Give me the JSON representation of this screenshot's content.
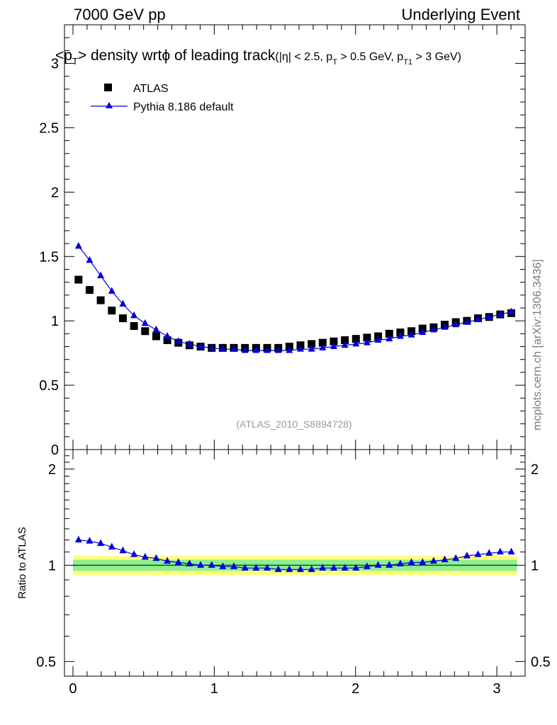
{
  "header": {
    "left": "7000 GeV pp",
    "right": "Underlying Event"
  },
  "title": {
    "main_pre": "<p",
    "main_sub": "T",
    "main_post": "> density wrtϕ of leading track",
    "cut_a": "(|η| < 2.5, p",
    "cut_a_sub": "T",
    "cut_b": " > 0.5 GeV, p",
    "cut_b_sub": "T1",
    "cut_c": " > 3 GeV)"
  },
  "watermark": "mcplots.cern.ch [arXiv:1306.3436]",
  "analysis_label": "(ATLAS_2010_S8894728)",
  "ratio_ylabel": "Ratio to ATLAS",
  "colors": {
    "data": "#000000",
    "mc": "#0000dd",
    "band_outer": "#ffff80",
    "band_inner": "#90ee90",
    "ref_line": "#006400"
  },
  "chart_data": [
    {
      "type": "scatter",
      "panel": "main",
      "xlim": [
        -0.06,
        3.2
      ],
      "ylim": [
        0,
        3.3
      ],
      "ytick_labels": [
        "0",
        "0.5",
        "1",
        "1.5",
        "2",
        "2.5",
        "3"
      ],
      "legend": "top-left",
      "series": [
        {
          "name": "ATLAS",
          "marker": "square",
          "x": [
            0.0393,
            0.1178,
            0.1963,
            0.2749,
            0.3534,
            0.432,
            0.5105,
            0.589,
            0.6676,
            0.7461,
            0.8247,
            0.9032,
            0.9817,
            1.0603,
            1.1388,
            1.2174,
            1.2959,
            1.3744,
            1.453,
            1.5315,
            1.6101,
            1.6886,
            1.7671,
            1.8457,
            1.9242,
            2.0028,
            2.0813,
            2.1598,
            2.2384,
            2.3169,
            2.3955,
            2.474,
            2.5525,
            2.6311,
            2.7096,
            2.7882,
            2.8667,
            2.9452,
            3.0238,
            3.1023
          ],
          "y": [
            1.32,
            1.24,
            1.16,
            1.08,
            1.02,
            0.96,
            0.92,
            0.88,
            0.85,
            0.83,
            0.81,
            0.8,
            0.79,
            0.79,
            0.79,
            0.79,
            0.79,
            0.79,
            0.79,
            0.8,
            0.81,
            0.82,
            0.83,
            0.84,
            0.85,
            0.86,
            0.87,
            0.88,
            0.9,
            0.91,
            0.92,
            0.94,
            0.95,
            0.97,
            0.99,
            1.0,
            1.02,
            1.03,
            1.05,
            1.06
          ]
        },
        {
          "name": "Pythia 8.186 default",
          "marker": "triangle",
          "x": [
            0.0393,
            0.1178,
            0.1963,
            0.2749,
            0.3534,
            0.432,
            0.5105,
            0.589,
            0.6676,
            0.7461,
            0.8247,
            0.9032,
            0.9817,
            1.0603,
            1.1388,
            1.2174,
            1.2959,
            1.3744,
            1.453,
            1.5315,
            1.6101,
            1.6886,
            1.7671,
            1.8457,
            1.9242,
            2.0028,
            2.0813,
            2.1598,
            2.2384,
            2.3169,
            2.3955,
            2.474,
            2.5525,
            2.6311,
            2.7096,
            2.7882,
            2.8667,
            2.9452,
            3.0238,
            3.1023
          ],
          "y": [
            1.58,
            1.47,
            1.35,
            1.23,
            1.13,
            1.04,
            0.98,
            0.93,
            0.88,
            0.84,
            0.82,
            0.8,
            0.79,
            0.78,
            0.78,
            0.77,
            0.77,
            0.77,
            0.77,
            0.77,
            0.78,
            0.78,
            0.79,
            0.8,
            0.81,
            0.82,
            0.83,
            0.85,
            0.86,
            0.88,
            0.89,
            0.91,
            0.93,
            0.95,
            0.97,
            0.99,
            1.01,
            1.03,
            1.05,
            1.07
          ]
        }
      ]
    },
    {
      "type": "scatter",
      "panel": "ratio",
      "xlim": [
        -0.06,
        3.2
      ],
      "ylim": [
        0.45,
        2.3
      ],
      "log_y": true,
      "xtick_labels": [
        "0",
        "1",
        "2",
        "3"
      ],
      "ytick_labels": [
        "0.5",
        "1",
        "2"
      ],
      "ylabel": "Ratio to ATLAS",
      "band_inner": [
        0.96,
        1.04
      ],
      "band_outer": [
        0.93,
        1.07
      ],
      "series": [
        {
          "name": "Pythia 8.186 default",
          "marker": "triangle",
          "x": [
            0.0393,
            0.1178,
            0.1963,
            0.2749,
            0.3534,
            0.432,
            0.5105,
            0.589,
            0.6676,
            0.7461,
            0.8247,
            0.9032,
            0.9817,
            1.0603,
            1.1388,
            1.2174,
            1.2959,
            1.3744,
            1.453,
            1.5315,
            1.6101,
            1.6886,
            1.7671,
            1.8457,
            1.9242,
            2.0028,
            2.0813,
            2.1598,
            2.2384,
            2.3169,
            2.3955,
            2.474,
            2.5525,
            2.6311,
            2.7096,
            2.7882,
            2.8667,
            2.9452,
            3.0238,
            3.1023
          ],
          "y": [
            1.2,
            1.19,
            1.17,
            1.14,
            1.11,
            1.08,
            1.06,
            1.05,
            1.03,
            1.02,
            1.01,
            1.0,
            1.0,
            0.99,
            0.99,
            0.98,
            0.98,
            0.98,
            0.97,
            0.97,
            0.97,
            0.97,
            0.98,
            0.98,
            0.98,
            0.98,
            0.99,
            1.0,
            1.0,
            1.01,
            1.02,
            1.02,
            1.03,
            1.04,
            1.05,
            1.07,
            1.08,
            1.09,
            1.1,
            1.1
          ]
        }
      ]
    }
  ]
}
